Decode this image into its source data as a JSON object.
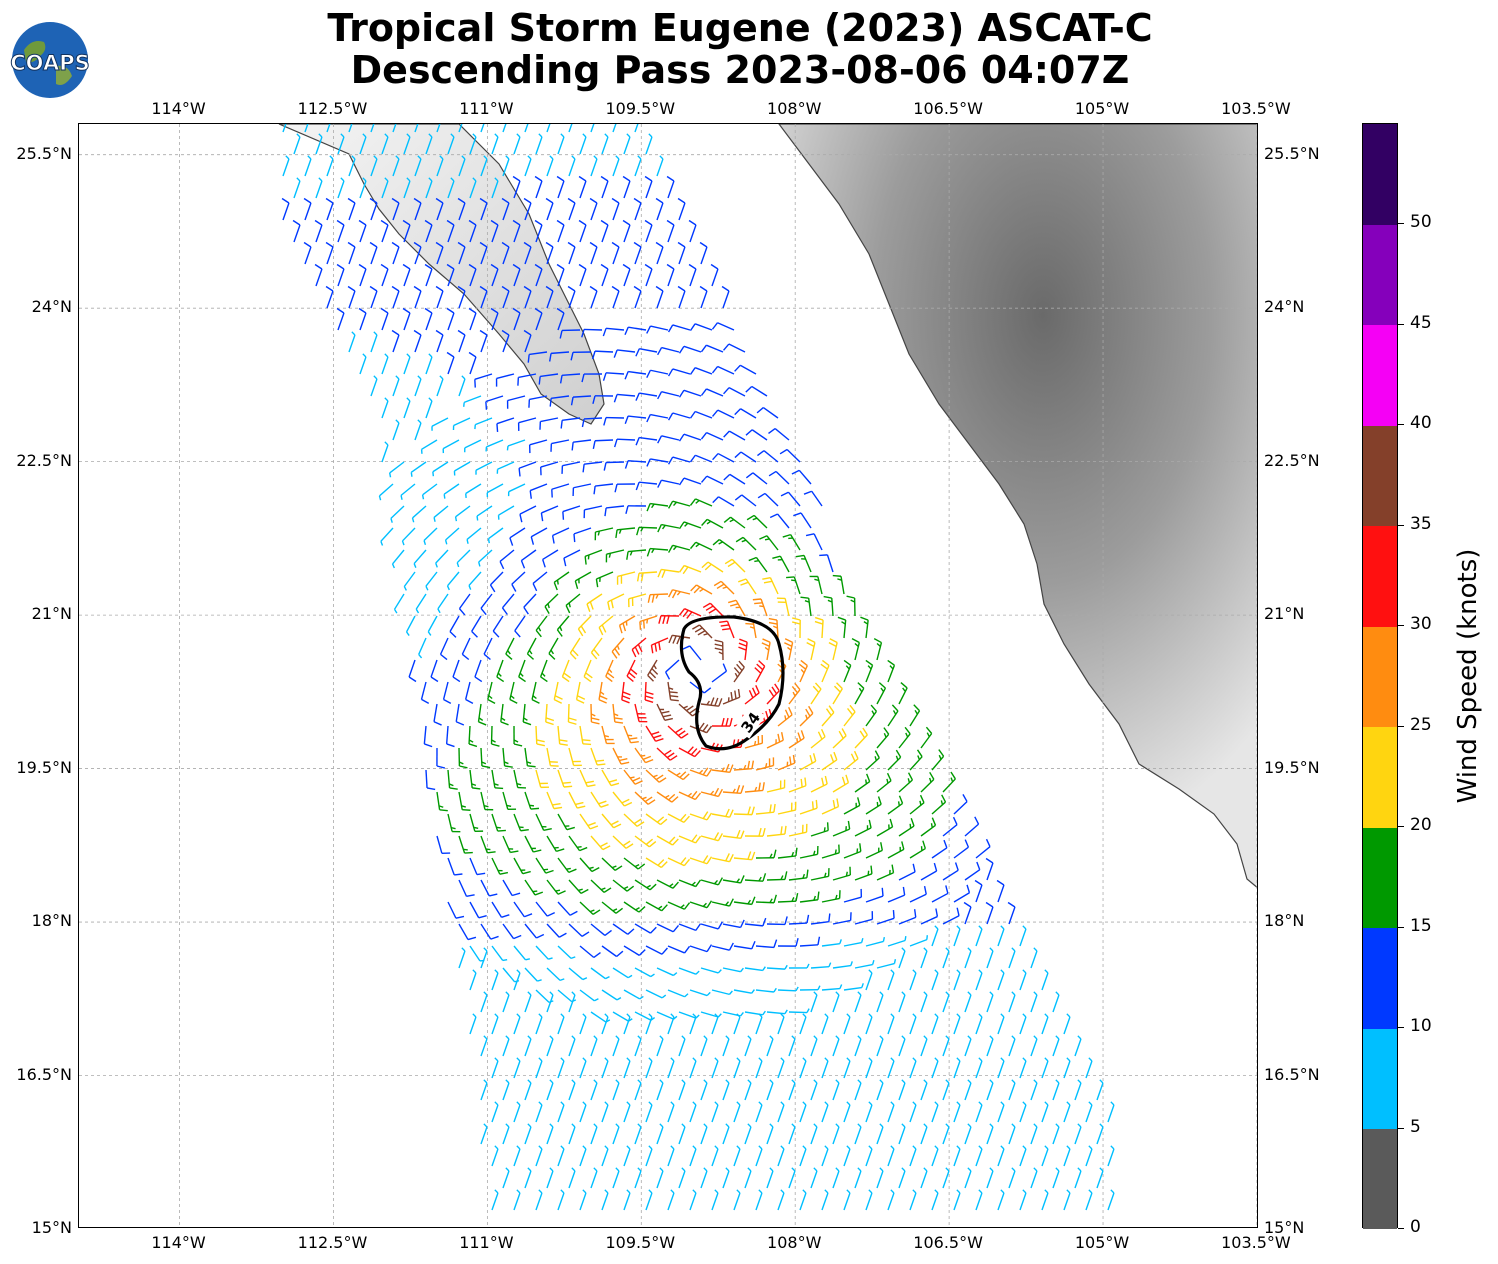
{
  "title": {
    "line1": "Tropical Storm Eugene (2023) ASCAT-C",
    "line2": "Descending Pass 2023-08-06 04:07Z"
  },
  "logo": {
    "text": "COAPS",
    "icon": "globe-logo-icon"
  },
  "map": {
    "lon_ticks": [
      "114°W",
      "112.5°W",
      "111°W",
      "109.5°W",
      "108°W",
      "106.5°W",
      "105°W",
      "103.5°W"
    ],
    "lat_ticks": [
      "25.5°N",
      "24°N",
      "22.5°N",
      "21°N",
      "19.5°N",
      "18°N",
      "16.5°N",
      "15°N"
    ],
    "lon_values": [
      -114,
      -112.5,
      -111,
      -109.5,
      -108,
      -106.5,
      -105,
      -103.5
    ],
    "lat_values": [
      25.5,
      24,
      22.5,
      21,
      19.5,
      18,
      16.5,
      15
    ],
    "extent": {
      "lon_min": -114.98,
      "lon_max": -103.48,
      "lat_min": 15.0,
      "lat_max": 25.8
    },
    "storm_center": {
      "lon": -108.98,
      "lat": 20.47
    },
    "contour_label": "34",
    "gridlines": true
  },
  "colorbar": {
    "title": "Wind Speed (knots)",
    "ticks": [
      "0",
      "5",
      "10",
      "15",
      "20",
      "25",
      "30",
      "35",
      "40",
      "45",
      "50"
    ],
    "bins": [
      {
        "min": 0,
        "max": 5,
        "color": "#5a5a5a"
      },
      {
        "min": 5,
        "max": 10,
        "color": "#00bfff"
      },
      {
        "min": 10,
        "max": 15,
        "color": "#0039ff"
      },
      {
        "min": 15,
        "max": 20,
        "color": "#009900"
      },
      {
        "min": 20,
        "max": 25,
        "color": "#ffd510"
      },
      {
        "min": 25,
        "max": 30,
        "color": "#ff8c10"
      },
      {
        "min": 30,
        "max": 35,
        "color": "#ff1010"
      },
      {
        "min": 35,
        "max": 40,
        "color": "#84402a"
      },
      {
        "min": 40,
        "max": 45,
        "color": "#f500f5"
      },
      {
        "min": 45,
        "max": 50,
        "color": "#8500bb"
      },
      {
        "min": 50,
        "max": 55,
        "color": "#320063"
      }
    ]
  }
}
